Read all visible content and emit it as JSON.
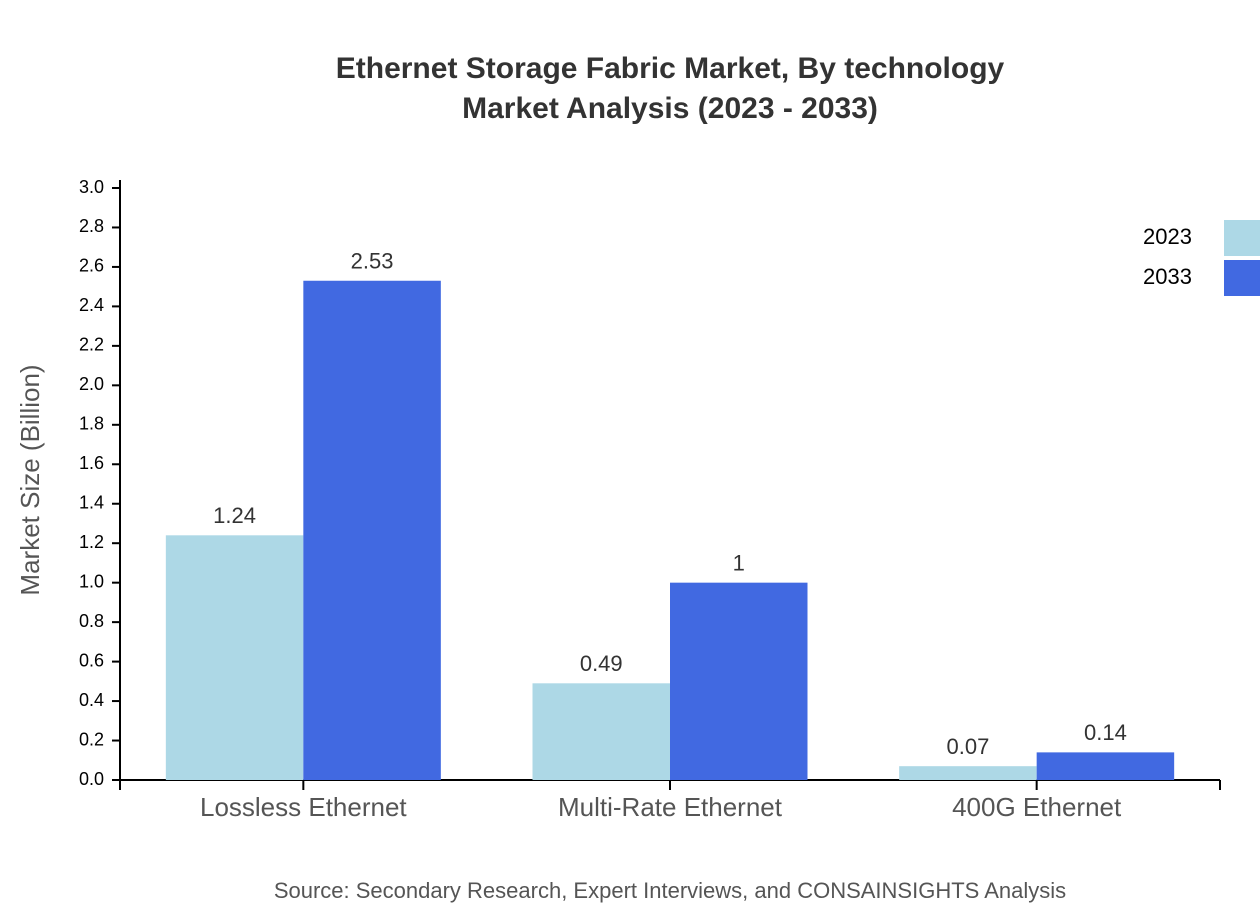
{
  "chart_data": {
    "type": "bar",
    "title": "Ethernet Storage Fabric Market, By technology",
    "subtitle": "Market Analysis (2023 - 2033)",
    "y_label": "Market Size (Billion)",
    "source": "Source: Secondary Research, Expert Interviews, and CONSAINSIGHTS Analysis",
    "categories": [
      "Lossless Ethernet",
      "Multi-Rate Ethernet",
      "400G Ethernet"
    ],
    "series": [
      {
        "name": "2023",
        "color": "#add8e6",
        "values": [
          1.24,
          0.49,
          0.07
        ]
      },
      {
        "name": "2033",
        "color": "#4169e1",
        "values": [
          2.53,
          1,
          0.14
        ]
      }
    ],
    "ylim": [
      0,
      3.0
    ],
    "yticks": [
      {
        "value": 0,
        "label": "0.0"
      },
      0.2,
      0.4,
      0.6,
      0.8,
      {
        "value": 1,
        "label": "1.0"
      },
      1.2,
      1.4,
      1.6,
      1.8,
      {
        "value": 2,
        "label": "2.0"
      },
      2.2,
      2.4,
      2.6,
      2.8,
      {
        "value": 3,
        "label": "3.0"
      }
    ],
    "legend": "top-right"
  }
}
